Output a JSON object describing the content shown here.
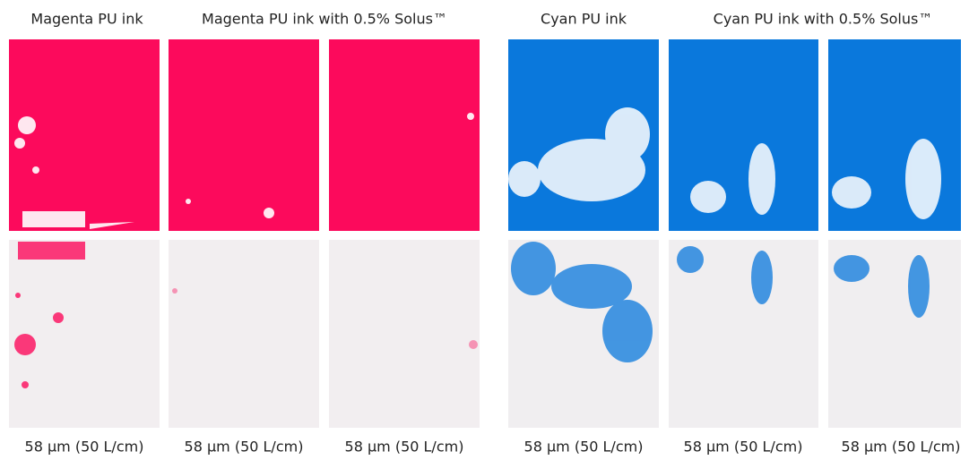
{
  "headers": [
    "Magenta PU ink",
    "Magenta PU ink with 0.5% Solus™",
    "Cyan PU ink",
    "Cyan PU ink with 0.5% Solus™"
  ],
  "captions": [
    "58 µm (50 L/cm)",
    "58 µm (50 L/cm)",
    "58 µm (50 L/cm)",
    "58 µm (50 L/cm)",
    "58 µm (50 L/cm)",
    "58 µm (50 L/cm)"
  ]
}
